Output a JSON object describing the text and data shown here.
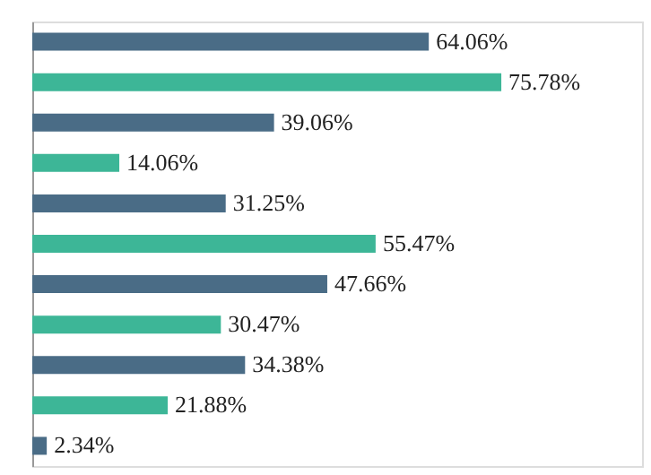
{
  "chart_data": {
    "type": "bar",
    "orientation": "horizontal",
    "value_labels": [
      "64.06%",
      "75.78%",
      "39.06%",
      "14.06%",
      "31.25%",
      "55.47%",
      "47.66%",
      "30.47%",
      "34.38%",
      "21.88%",
      "2.34%"
    ],
    "categories": [
      null,
      null,
      null,
      null,
      null,
      null,
      null,
      null,
      null,
      null,
      null
    ],
    "values": [
      64.06,
      75.78,
      39.06,
      14.06,
      31.25,
      55.47,
      47.66,
      30.47,
      34.38,
      21.88,
      2.34
    ],
    "colors": [
      "#4a6c86",
      "#3db697",
      "#4a6c86",
      "#3db697",
      "#4a6c86",
      "#3db697",
      "#4a6c86",
      "#3db697",
      "#4a6c86",
      "#3db697",
      "#4a6c86"
    ]
  }
}
